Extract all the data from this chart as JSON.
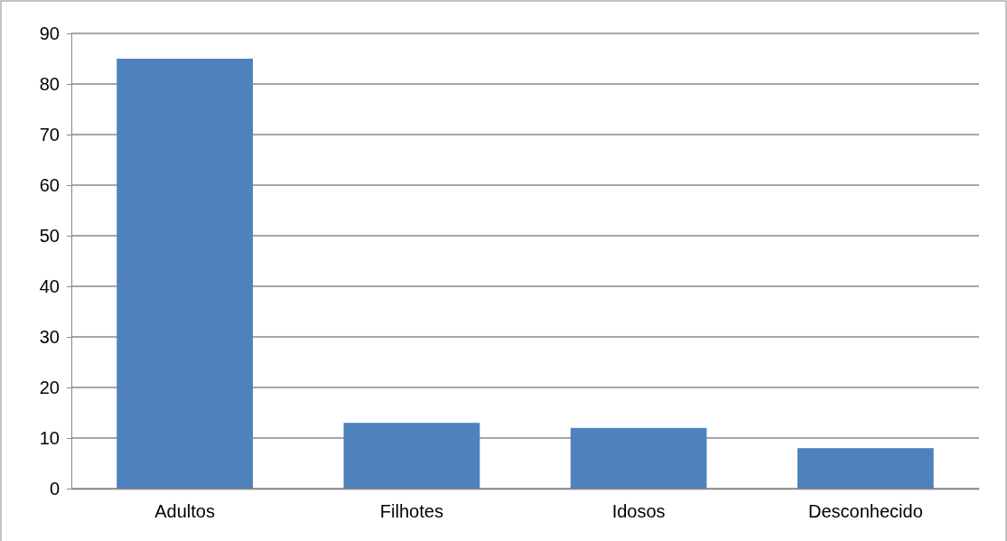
{
  "chart_data": {
    "type": "bar",
    "categories": [
      "Adultos",
      "Filhotes",
      "Idosos",
      "Desconhecido"
    ],
    "values": [
      85,
      13,
      12,
      8
    ],
    "color": "#4f81bd",
    "ylim": [
      0,
      90
    ],
    "yticks": [
      0,
      10,
      20,
      30,
      40,
      50,
      60,
      70,
      80,
      90
    ],
    "grid": "y"
  }
}
